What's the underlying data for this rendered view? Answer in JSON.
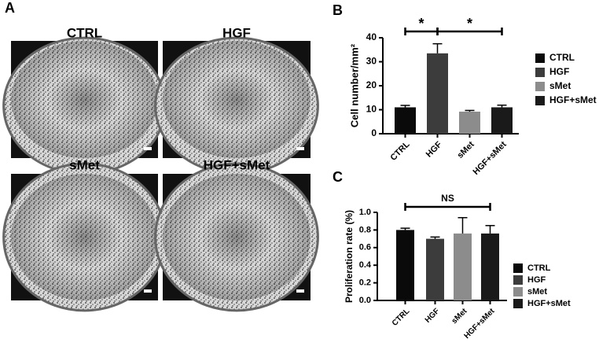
{
  "panel_labels": [
    "A",
    "B",
    "C"
  ],
  "images": [
    {
      "title": "CTRL"
    },
    {
      "title": "HGF"
    },
    {
      "title": "sMet"
    },
    {
      "title": "HGF+sMet"
    }
  ],
  "chart_data": [
    {
      "type": "bar",
      "ylabel": "Cell number/mm²",
      "categories": [
        "CTRL",
        "HGF",
        "sMet",
        "HGF+sMet"
      ],
      "values": [
        11,
        33.5,
        9.2,
        11
      ],
      "errors": [
        0.8,
        4,
        0.5,
        0.9
      ],
      "colors": [
        "#0a0a0a",
        "#3c3c3c",
        "#8c8c8c",
        "#1a1a1a"
      ],
      "ylim": [
        0,
        40
      ],
      "yticks": [
        0,
        10,
        20,
        30,
        40
      ],
      "annotations": [
        "*",
        "*"
      ],
      "legend": "right"
    },
    {
      "type": "bar",
      "ylabel": "Proliferation rate (%)",
      "categories": [
        "CTRL",
        "HGF",
        "sMet",
        "HGF+sMet"
      ],
      "values": [
        0.8,
        0.7,
        0.76,
        0.76
      ],
      "errors": [
        0.02,
        0.02,
        0.18,
        0.09
      ],
      "colors": [
        "#0a0a0a",
        "#3c3c3c",
        "#8c8c8c",
        "#1a1a1a"
      ],
      "ylim": [
        0,
        1.0
      ],
      "yticks": [
        {
          "value": 0,
          "label": "0.0"
        },
        0.2,
        0.4,
        0.6,
        0.8,
        {
          "value": 1.0,
          "label": "1.0"
        }
      ],
      "annotations": [
        "NS"
      ],
      "legend": "right"
    }
  ]
}
